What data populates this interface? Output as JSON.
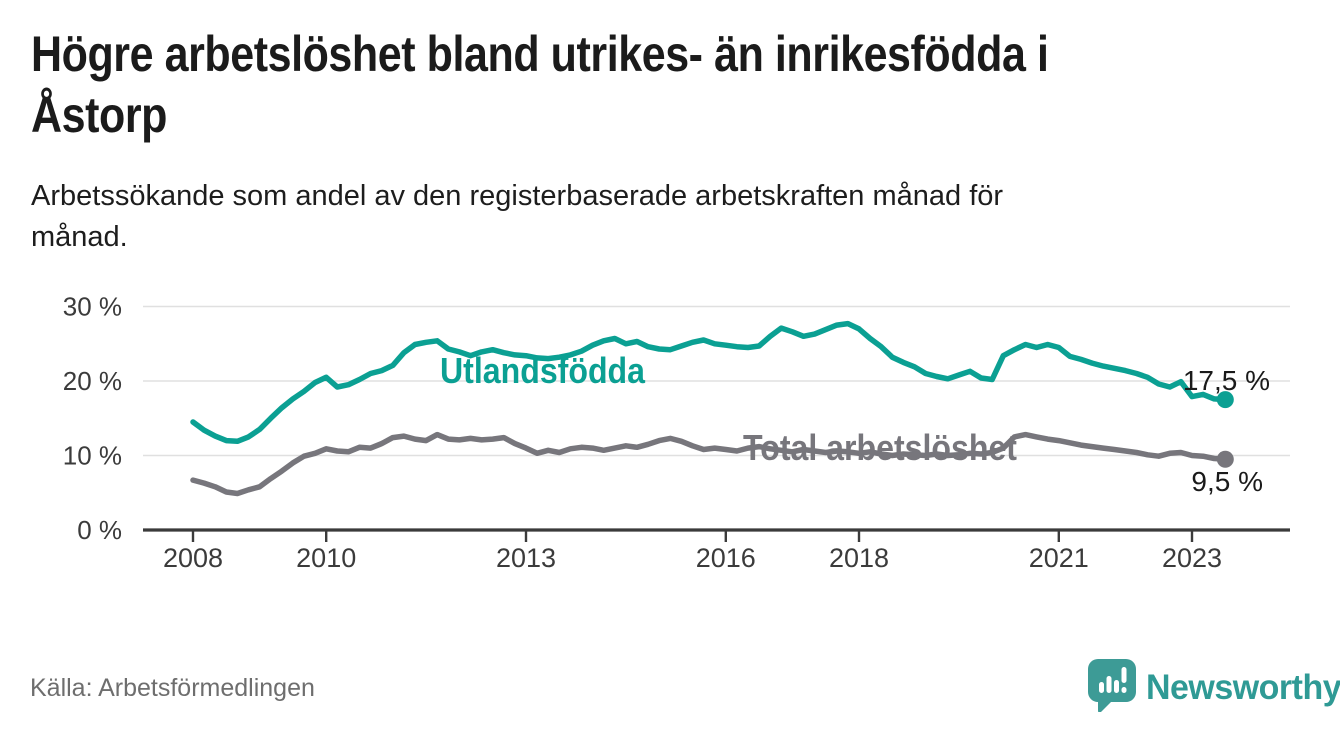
{
  "header": {
    "title_lines": [
      "Högre arbetslöshet bland utrikes- än inrikesfödda i",
      "Åstorp"
    ],
    "subtitle_lines": [
      "Arbetssökande som andel av den registerbaserade arbetskraften månad för",
      "månad."
    ]
  },
  "footer": {
    "source": "Källa: Arbetsförmedlingen",
    "logo_text": "Newsworthy",
    "logo_icon": "speech-bubble-bar-chart-icon"
  },
  "colors": {
    "foreign_born_line": "#0ba093",
    "total_line": "#77767c",
    "axis": "#3b3b3b",
    "gridline": "#e0e0e0",
    "end_label_text": "#1a1a1a",
    "logo_teal": "#3d9b96",
    "source_text": "#6e6e6e"
  },
  "chart_data": {
    "type": "line",
    "title": "",
    "xlabel": "",
    "ylabel": "",
    "x_start_year": 2008,
    "x_step_months": 2,
    "x_tick_years": [
      2008,
      2010,
      2013,
      2016,
      2018,
      2021,
      2023
    ],
    "x_tick_labels": [
      "2008",
      "2010",
      "2013",
      "2016",
      "2018",
      "2021",
      "2023"
    ],
    "y_ticks": [
      0,
      10,
      20,
      30
    ],
    "y_tick_labels": [
      "0 %",
      "10 %",
      "20 %",
      "30 %"
    ],
    "ylim": [
      0,
      32
    ],
    "grid": "horizontal",
    "legend_position": "inline-labels",
    "series": [
      {
        "name": "Utlandsfödda",
        "color": "#0ba093",
        "end_label": "17,5 %",
        "end_value": 17.5,
        "values": [
          14.5,
          13.4,
          12.6,
          12.0,
          11.9,
          12.5,
          13.5,
          15.0,
          16.4,
          17.6,
          18.6,
          19.8,
          20.5,
          19.2,
          19.5,
          20.2,
          21.0,
          21.4,
          22.1,
          23.8,
          24.9,
          25.2,
          25.4,
          24.3,
          23.9,
          23.4,
          23.9,
          24.2,
          23.8,
          23.5,
          23.4,
          23.1,
          23.0,
          23.2,
          23.5,
          24.0,
          24.8,
          25.4,
          25.7,
          25.0,
          25.3,
          24.6,
          24.3,
          24.2,
          24.7,
          25.2,
          25.5,
          25.0,
          24.8,
          24.6,
          24.5,
          24.7,
          26.0,
          27.1,
          26.6,
          26.0,
          26.3,
          26.9,
          27.5,
          27.7,
          27.0,
          25.7,
          24.6,
          23.2,
          22.5,
          21.9,
          21.0,
          20.6,
          20.3,
          20.8,
          21.3,
          20.4,
          20.2,
          23.4,
          24.2,
          24.9,
          24.5,
          24.9,
          24.5,
          23.3,
          22.9,
          22.4,
          22.0,
          21.7,
          21.4,
          21.0,
          20.5,
          19.6,
          19.2,
          19.9,
          17.9,
          18.2,
          17.6,
          17.5
        ]
      },
      {
        "name": "Total arbetslöshet",
        "color": "#77767c",
        "end_label": "9,5 %",
        "end_value": 9.5,
        "values": [
          6.7,
          6.3,
          5.8,
          5.1,
          4.9,
          5.4,
          5.8,
          6.9,
          7.9,
          9.0,
          9.9,
          10.3,
          10.9,
          10.6,
          10.5,
          11.1,
          11.0,
          11.6,
          12.4,
          12.6,
          12.2,
          12.0,
          12.8,
          12.2,
          12.1,
          12.3,
          12.1,
          12.2,
          12.4,
          11.6,
          11.0,
          10.3,
          10.7,
          10.4,
          10.9,
          11.1,
          11.0,
          10.7,
          11.0,
          11.3,
          11.1,
          11.5,
          12.0,
          12.3,
          11.9,
          11.3,
          10.8,
          11.0,
          10.8,
          10.6,
          11.0,
          11.2,
          10.9,
          10.7,
          10.5,
          10.8,
          10.6,
          10.4,
          10.6,
          10.5,
          10.3,
          10.5,
          10.2,
          10.0,
          10.2,
          10.1,
          10.0,
          10.2,
          10.0,
          10.1,
          10.3,
          10.2,
          10.4,
          11.0,
          12.5,
          12.8,
          12.5,
          12.2,
          12.0,
          11.7,
          11.4,
          11.2,
          11.0,
          10.8,
          10.6,
          10.4,
          10.1,
          9.9,
          10.3,
          10.4,
          10.0,
          9.9,
          9.6,
          9.5
        ]
      }
    ]
  }
}
